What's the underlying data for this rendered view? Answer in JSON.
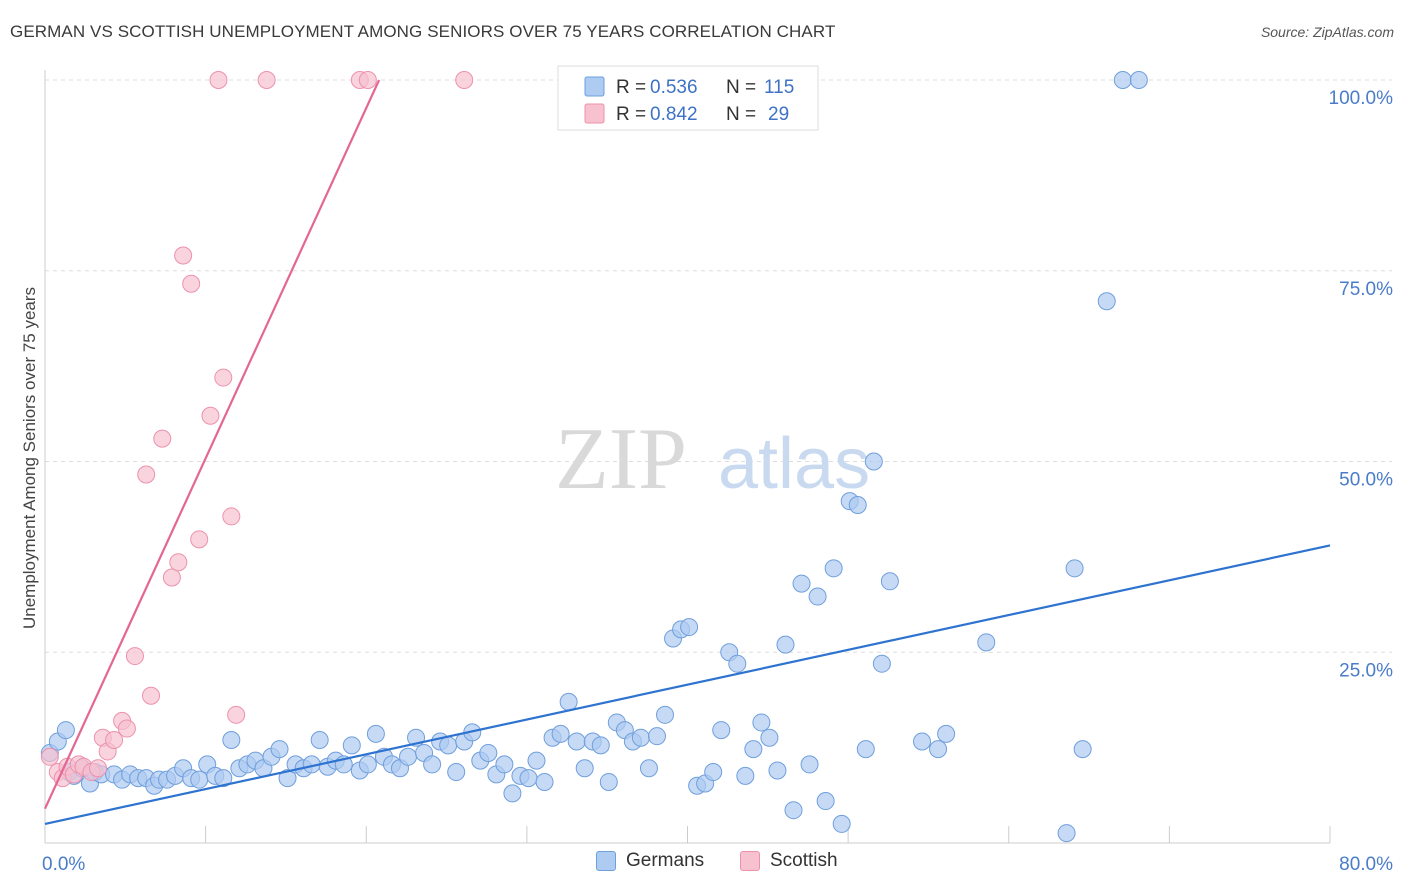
{
  "chart_data": {
    "type": "scatter",
    "title": "GERMAN VS SCOTTISH UNEMPLOYMENT AMONG SENIORS OVER 75 YEARS CORRELATION CHART",
    "source": "Source: ZipAtlas.com",
    "ylabel": "Unemployment Among Seniors over 75 years",
    "xlabel": "",
    "xlim": [
      0,
      80
    ],
    "ylim": [
      0,
      100
    ],
    "x_tick_labels": [
      "0.0%",
      "80.0%"
    ],
    "y_tick_values": [
      25,
      50,
      75,
      100
    ],
    "y_tick_labels": [
      "25.0%",
      "50.0%",
      "75.0%",
      "100.0%"
    ],
    "watermark": "ZIPatlas",
    "legend_stats": [
      {
        "r_label": "R =",
        "r_value": "0.536",
        "n_label": "N =",
        "n_value": "115"
      },
      {
        "r_label": "R =",
        "r_value": "0.842",
        "n_label": "N =",
        "n_value": "29"
      }
    ],
    "colors": {
      "germans_fill": "#aecbf2",
      "germans_stroke": "#6f9fdc",
      "germans_line": "#2e73d0",
      "scottish_fill": "#f7c1d0",
      "scottish_stroke": "#ec92ad",
      "scottish_line": "#e46693",
      "axis_text": "#4a7cc9"
    },
    "series": [
      {
        "name": "Germans",
        "trend": {
          "x0": 0,
          "y0": 2.5,
          "x1": 80,
          "y1": 39
        },
        "points": [
          [
            0.3,
            11.8
          ],
          [
            0.8,
            13.3
          ],
          [
            1.3,
            14.8
          ],
          [
            1.5,
            9.3
          ],
          [
            1.8,
            8.8
          ],
          [
            2.3,
            9.8
          ],
          [
            2.8,
            7.8
          ],
          [
            3.1,
            9.3
          ],
          [
            3.5,
            9.0
          ],
          [
            4.3,
            9.0
          ],
          [
            4.8,
            8.3
          ],
          [
            5.3,
            9.0
          ],
          [
            5.8,
            8.5
          ],
          [
            6.3,
            8.5
          ],
          [
            6.8,
            7.5
          ],
          [
            7.1,
            8.3
          ],
          [
            7.6,
            8.3
          ],
          [
            8.1,
            8.8
          ],
          [
            8.6,
            9.8
          ],
          [
            9.1,
            8.5
          ],
          [
            9.6,
            8.3
          ],
          [
            10.1,
            10.3
          ],
          [
            10.6,
            8.8
          ],
          [
            11.1,
            8.5
          ],
          [
            11.6,
            13.5
          ],
          [
            12.1,
            9.8
          ],
          [
            12.6,
            10.3
          ],
          [
            13.1,
            10.8
          ],
          [
            13.6,
            9.8
          ],
          [
            14.1,
            11.3
          ],
          [
            14.6,
            12.3
          ],
          [
            15.1,
            8.5
          ],
          [
            15.6,
            10.3
          ],
          [
            16.1,
            9.8
          ],
          [
            16.6,
            10.3
          ],
          [
            17.1,
            13.5
          ],
          [
            17.6,
            10.0
          ],
          [
            18.1,
            10.8
          ],
          [
            18.6,
            10.3
          ],
          [
            19.1,
            12.8
          ],
          [
            19.6,
            9.5
          ],
          [
            20.1,
            10.3
          ],
          [
            20.6,
            14.3
          ],
          [
            21.1,
            11.3
          ],
          [
            21.6,
            10.3
          ],
          [
            22.1,
            9.8
          ],
          [
            22.6,
            11.3
          ],
          [
            23.1,
            13.8
          ],
          [
            23.6,
            11.8
          ],
          [
            24.1,
            10.3
          ],
          [
            24.6,
            13.3
          ],
          [
            25.1,
            12.8
          ],
          [
            25.6,
            9.3
          ],
          [
            26.1,
            13.3
          ],
          [
            26.6,
            14.5
          ],
          [
            27.1,
            10.8
          ],
          [
            27.6,
            11.8
          ],
          [
            28.1,
            9.0
          ],
          [
            28.6,
            10.3
          ],
          [
            29.1,
            6.5
          ],
          [
            29.6,
            8.8
          ],
          [
            30.1,
            8.5
          ],
          [
            30.6,
            10.8
          ],
          [
            31.1,
            8.0
          ],
          [
            31.6,
            13.8
          ],
          [
            32.1,
            14.3
          ],
          [
            32.6,
            18.5
          ],
          [
            33.1,
            13.3
          ],
          [
            33.6,
            9.8
          ],
          [
            34.1,
            13.3
          ],
          [
            34.6,
            12.8
          ],
          [
            35.1,
            8.0
          ],
          [
            35.6,
            15.8
          ],
          [
            36.1,
            14.8
          ],
          [
            36.6,
            13.3
          ],
          [
            37.1,
            13.8
          ],
          [
            37.6,
            9.8
          ],
          [
            38.1,
            14.0
          ],
          [
            38.6,
            16.8
          ],
          [
            39.1,
            26.8
          ],
          [
            39.6,
            28.0
          ],
          [
            40.1,
            28.3
          ],
          [
            40.6,
            7.5
          ],
          [
            41.1,
            7.8
          ],
          [
            41.6,
            9.3
          ],
          [
            42.1,
            14.8
          ],
          [
            42.6,
            25.0
          ],
          [
            43.1,
            23.5
          ],
          [
            43.6,
            8.8
          ],
          [
            44.1,
            12.3
          ],
          [
            44.6,
            15.8
          ],
          [
            45.1,
            13.8
          ],
          [
            45.6,
            9.5
          ],
          [
            46.1,
            26.0
          ],
          [
            46.6,
            4.3
          ],
          [
            47.1,
            34.0
          ],
          [
            47.6,
            10.3
          ],
          [
            48.1,
            32.3
          ],
          [
            48.6,
            5.5
          ],
          [
            49.1,
            36.0
          ],
          [
            49.6,
            2.5
          ],
          [
            50.1,
            44.8
          ],
          [
            50.6,
            44.3
          ],
          [
            51.1,
            12.3
          ],
          [
            51.6,
            50.0
          ],
          [
            52.1,
            23.5
          ],
          [
            52.6,
            34.3
          ],
          [
            54.6,
            13.3
          ],
          [
            55.6,
            12.3
          ],
          [
            56.1,
            14.3
          ],
          [
            58.6,
            26.3
          ],
          [
            63.6,
            1.3
          ],
          [
            64.1,
            36.0
          ],
          [
            64.6,
            12.3
          ],
          [
            66.1,
            71.0
          ],
          [
            67.1,
            100
          ],
          [
            68.1,
            100
          ]
        ]
      },
      {
        "name": "Scottish",
        "trend": {
          "x0": 0,
          "y0": 4.5,
          "x1": 20.8,
          "y1": 100
        },
        "points": [
          [
            0.3,
            11.3
          ],
          [
            0.8,
            9.3
          ],
          [
            1.1,
            8.5
          ],
          [
            1.4,
            10.0
          ],
          [
            1.8,
            9.0
          ],
          [
            2.1,
            10.3
          ],
          [
            2.4,
            10.0
          ],
          [
            2.9,
            9.3
          ],
          [
            3.3,
            9.8
          ],
          [
            3.6,
            13.8
          ],
          [
            3.9,
            12.0
          ],
          [
            4.3,
            13.5
          ],
          [
            4.8,
            16.0
          ],
          [
            5.1,
            15.0
          ],
          [
            5.6,
            24.5
          ],
          [
            6.6,
            19.3
          ],
          [
            6.3,
            48.3
          ],
          [
            7.3,
            53.0
          ],
          [
            7.9,
            34.8
          ],
          [
            8.3,
            36.8
          ],
          [
            8.6,
            77.0
          ],
          [
            9.1,
            73.3
          ],
          [
            9.6,
            39.8
          ],
          [
            10.3,
            56.0
          ],
          [
            11.1,
            61.0
          ],
          [
            11.6,
            42.8
          ],
          [
            11.9,
            16.8
          ],
          [
            10.8,
            100
          ],
          [
            13.8,
            100
          ],
          [
            19.6,
            100
          ],
          [
            20.1,
            100
          ],
          [
            26.1,
            100
          ]
        ]
      }
    ]
  },
  "legend_bottom": {
    "germans": "Germans",
    "scottish": "Scottish"
  }
}
